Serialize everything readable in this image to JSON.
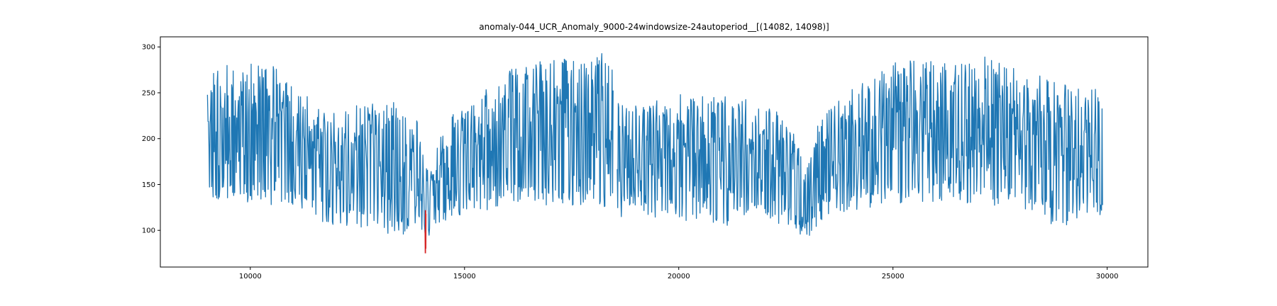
{
  "chart_data": {
    "type": "line",
    "title": "anomaly-044_UCR_Anomaly_9000-24windowsize-24autoperiod__[(14082, 14098)]",
    "xlabel": "",
    "ylabel": "",
    "xlim": [
      7900,
      30950
    ],
    "ylim": [
      60,
      311
    ],
    "x_ticks": [
      10000,
      15000,
      20000,
      25000,
      30000
    ],
    "y_ticks": [
      100,
      150,
      200,
      250,
      300
    ],
    "grid": false,
    "legend": "none",
    "series": [
      {
        "color": "#1f77b4",
        "x_start": 9000,
        "x_end": 29900,
        "gaps": [
          [
            18470,
            18560
          ]
        ],
        "envelope": {
          "x": [
            9000,
            9500,
            10000,
            10500,
            11000,
            11500,
            12000,
            12500,
            13000,
            13500,
            13900,
            14082,
            14300,
            14700,
            15200,
            15800,
            16500,
            17200,
            17800,
            18400,
            18600,
            18900,
            19500,
            20200,
            21000,
            21800,
            22500,
            23000,
            23300,
            23700,
            24200,
            25000,
            25600,
            26300,
            27000,
            27600,
            28200,
            28800,
            29300,
            29900
          ],
          "upper": [
            282,
            286,
            288,
            280,
            262,
            238,
            234,
            236,
            242,
            240,
            228,
            165,
            190,
            225,
            248,
            270,
            285,
            288,
            290,
            295,
            240,
            235,
            245,
            250,
            247,
            243,
            225,
            170,
            225,
            245,
            258,
            283,
            288,
            285,
            292,
            285,
            275,
            262,
            258,
            252
          ],
          "lower": [
            138,
            130,
            128,
            125,
            122,
            112,
            105,
            100,
            98,
            95,
            100,
            88,
            98,
            112,
            120,
            124,
            126,
            128,
            122,
            125,
            110,
            118,
            112,
            108,
            105,
            108,
            105,
            90,
            110,
            118,
            122,
            125,
            128,
            130,
            128,
            126,
            118,
            100,
            110,
            115
          ],
          "mid": [
            170,
            168,
            168,
            165,
            160,
            150,
            145,
            143,
            145,
            143,
            138,
            120,
            135,
            150,
            162,
            168,
            172,
            174,
            176,
            180,
            195,
            165,
            160,
            158,
            155,
            150,
            145,
            125,
            148,
            158,
            163,
            170,
            172,
            174,
            175,
            172,
            168,
            160,
            155,
            155
          ]
        }
      },
      {
        "color": "#d62728",
        "x": [
          14082,
          14086,
          14090,
          14094,
          14098
        ],
        "y": [
          100,
          75,
          122,
          80,
          118
        ]
      }
    ]
  }
}
